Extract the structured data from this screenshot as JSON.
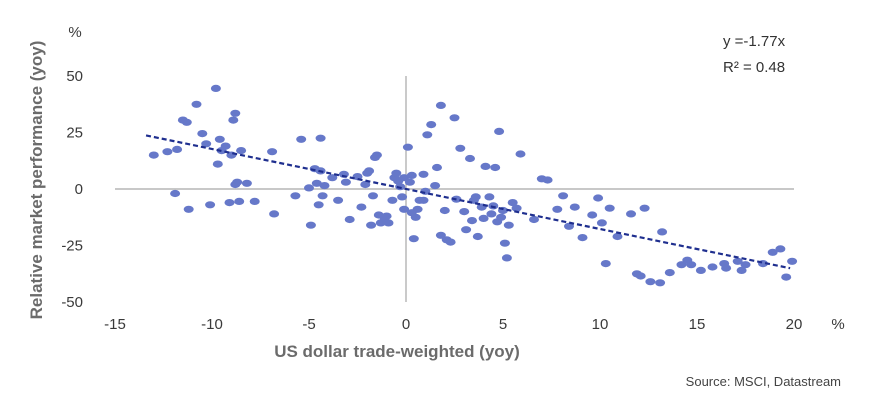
{
  "chart_data": {
    "type": "scatter",
    "xlabel": "US dollar trade-weighted (yoy)",
    "ylabel": "Relative market performance (yoy)",
    "x_unit": "%",
    "y_unit": "%",
    "xlim": [
      -15,
      20
    ],
    "ylim": [
      -50,
      50
    ],
    "x_ticks": [
      "-15",
      "-10",
      "-5",
      "0",
      "5",
      "10",
      "15",
      "20"
    ],
    "y_ticks": [
      "50",
      "25",
      "0",
      "-25",
      "-50"
    ],
    "grid": false,
    "trendline": {
      "slope": -1.77,
      "intercept": 0,
      "x_range": [
        -13.4,
        19.8
      ],
      "equation_label": "y =-1.77x",
      "r2_label": "R² = 0.48"
    },
    "source": "Source: MSCI, Datastream",
    "colors": {
      "points": "#6678c9",
      "trendline": "#1f2f8f",
      "axis": "#a6a6a6"
    },
    "points": [
      [
        -13.0,
        15.0
      ],
      [
        -12.3,
        16.5
      ],
      [
        -11.9,
        -2.0
      ],
      [
        -11.8,
        17.5
      ],
      [
        -11.5,
        30.5
      ],
      [
        -11.3,
        29.5
      ],
      [
        -11.2,
        -9.0
      ],
      [
        -10.8,
        37.5
      ],
      [
        -10.5,
        24.5
      ],
      [
        -10.3,
        20.0
      ],
      [
        -10.1,
        -7.0
      ],
      [
        -9.8,
        44.5
      ],
      [
        -9.7,
        11.0
      ],
      [
        -9.6,
        22.0
      ],
      [
        -9.5,
        17.0
      ],
      [
        -9.3,
        19.0
      ],
      [
        -9.1,
        -6.0
      ],
      [
        -9.0,
        15.0
      ],
      [
        -8.9,
        30.5
      ],
      [
        -8.8,
        33.5
      ],
      [
        -8.8,
        2.0
      ],
      [
        -8.7,
        3.0
      ],
      [
        -8.6,
        -5.5
      ],
      [
        -8.5,
        17.0
      ],
      [
        -8.2,
        2.5
      ],
      [
        -7.8,
        -5.5
      ],
      [
        -6.9,
        16.5
      ],
      [
        -6.8,
        -11.0
      ],
      [
        -5.7,
        -3.0
      ],
      [
        -5.4,
        22.0
      ],
      [
        -5.0,
        0.5
      ],
      [
        -4.9,
        -16.0
      ],
      [
        -4.7,
        9.0
      ],
      [
        -4.6,
        2.5
      ],
      [
        -4.5,
        -7.0
      ],
      [
        -4.4,
        8.0
      ],
      [
        -4.4,
        22.5
      ],
      [
        -4.3,
        -3.0
      ],
      [
        -4.2,
        1.5
      ],
      [
        -3.8,
        5.0
      ],
      [
        -3.5,
        -5.0
      ],
      [
        -3.2,
        6.5
      ],
      [
        -3.1,
        3.0
      ],
      [
        -2.9,
        -13.5
      ],
      [
        -2.5,
        5.5
      ],
      [
        -2.3,
        -8.0
      ],
      [
        -2.1,
        2.0
      ],
      [
        -2.0,
        7.0
      ],
      [
        -1.9,
        8.0
      ],
      [
        -1.8,
        -16.0
      ],
      [
        -1.7,
        -3.0
      ],
      [
        -1.6,
        14.0
      ],
      [
        -1.5,
        15.0
      ],
      [
        -1.4,
        -11.5
      ],
      [
        -1.3,
        -15.0
      ],
      [
        -1.1,
        -13.0
      ],
      [
        -1.0,
        -12.0
      ],
      [
        -0.9,
        -15.0
      ],
      [
        -0.7,
        -5.0
      ],
      [
        -0.6,
        5.0
      ],
      [
        -0.5,
        7.0
      ],
      [
        -0.4,
        3.5
      ],
      [
        -0.3,
        1.0
      ],
      [
        -0.2,
        -3.5
      ],
      [
        -0.1,
        5.0
      ],
      [
        -0.1,
        -9.0
      ],
      [
        0.1,
        18.5
      ],
      [
        0.2,
        3.0
      ],
      [
        0.3,
        6.0
      ],
      [
        0.3,
        -10.5
      ],
      [
        0.4,
        -22.0
      ],
      [
        0.5,
        -12.5
      ],
      [
        0.6,
        -9.0
      ],
      [
        0.7,
        -5.0
      ],
      [
        0.9,
        -5.0
      ],
      [
        0.9,
        6.5
      ],
      [
        1.0,
        -1.0
      ],
      [
        1.1,
        24.0
      ],
      [
        1.3,
        28.5
      ],
      [
        1.5,
        1.5
      ],
      [
        1.6,
        9.5
      ],
      [
        1.8,
        -20.5
      ],
      [
        1.8,
        37.0
      ],
      [
        2.0,
        -9.5
      ],
      [
        2.1,
        -22.5
      ],
      [
        2.3,
        -23.5
      ],
      [
        2.5,
        31.5
      ],
      [
        2.6,
        -4.5
      ],
      [
        2.8,
        18.0
      ],
      [
        3.0,
        -10.0
      ],
      [
        3.1,
        -18.0
      ],
      [
        3.3,
        13.5
      ],
      [
        3.4,
        -14.0
      ],
      [
        3.5,
        -5.0
      ],
      [
        3.6,
        -3.5
      ],
      [
        3.7,
        -21.0
      ],
      [
        3.9,
        -8.0
      ],
      [
        4.0,
        -13.0
      ],
      [
        4.1,
        10.0
      ],
      [
        4.3,
        -3.5
      ],
      [
        4.4,
        -11.0
      ],
      [
        4.5,
        -7.5
      ],
      [
        4.6,
        9.5
      ],
      [
        4.7,
        -14.5
      ],
      [
        4.8,
        25.5
      ],
      [
        4.9,
        -12.5
      ],
      [
        5.0,
        -9.5
      ],
      [
        5.1,
        -24.0
      ],
      [
        5.2,
        -30.5
      ],
      [
        5.3,
        -16.0
      ],
      [
        5.5,
        -6.0
      ],
      [
        5.7,
        -8.5
      ],
      [
        5.9,
        15.5
      ],
      [
        6.6,
        -13.5
      ],
      [
        7.0,
        4.5
      ],
      [
        7.3,
        4.0
      ],
      [
        7.8,
        -9.0
      ],
      [
        8.1,
        -3.0
      ],
      [
        8.4,
        -16.5
      ],
      [
        8.7,
        -8.0
      ],
      [
        9.1,
        -21.5
      ],
      [
        9.6,
        -11.5
      ],
      [
        9.9,
        -4.0
      ],
      [
        10.1,
        -15.0
      ],
      [
        10.3,
        -33.0
      ],
      [
        10.5,
        -8.5
      ],
      [
        10.9,
        -21.0
      ],
      [
        11.6,
        -11.0
      ],
      [
        11.9,
        -37.5
      ],
      [
        12.1,
        -38.5
      ],
      [
        12.6,
        -41.0
      ],
      [
        13.1,
        -41.5
      ],
      [
        13.6,
        -37.0
      ],
      [
        14.2,
        -33.5
      ],
      [
        14.5,
        -31.5
      ],
      [
        14.7,
        -33.5
      ],
      [
        15.2,
        -36.0
      ],
      [
        15.8,
        -34.5
      ],
      [
        16.4,
        -33.0
      ],
      [
        16.5,
        -35.0
      ],
      [
        17.1,
        -32.0
      ],
      [
        17.3,
        -36.0
      ],
      [
        17.5,
        -33.5
      ],
      [
        18.4,
        -33.0
      ],
      [
        18.9,
        -28.0
      ],
      [
        19.3,
        -26.5
      ],
      [
        19.6,
        -39.0
      ],
      [
        19.9,
        -32.0
      ],
      [
        12.3,
        -8.5
      ],
      [
        13.2,
        -19.0
      ]
    ]
  }
}
